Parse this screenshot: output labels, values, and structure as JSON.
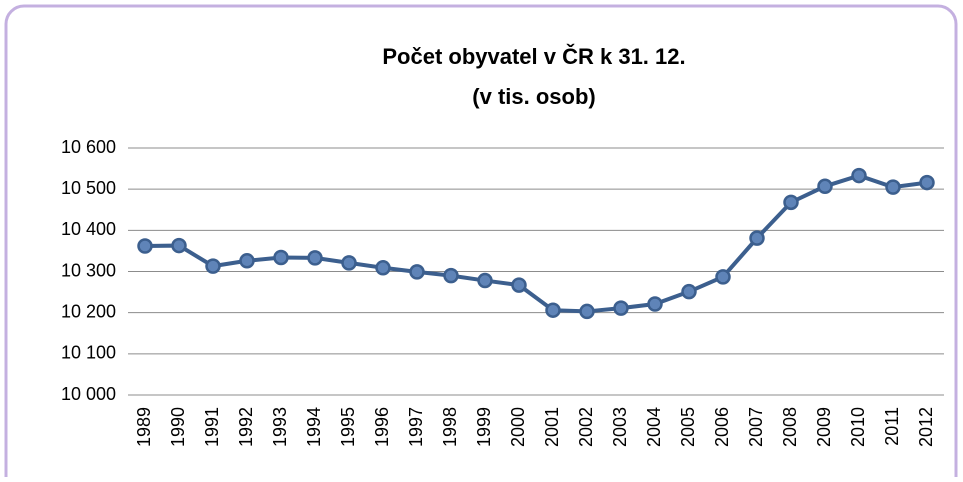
{
  "chart_data": {
    "type": "line",
    "title": "Počet obyvatel v ČR k 31. 12.",
    "subtitle": "(v tis. osob)",
    "categories": [
      "1989",
      "1990",
      "1991",
      "1992",
      "1993",
      "1994",
      "1995",
      "1996",
      "1997",
      "1998",
      "1999",
      "2000",
      "2001",
      "2002",
      "2003",
      "2004",
      "2005",
      "2006",
      "2007",
      "2008",
      "2009",
      "2010",
      "2011",
      "2012"
    ],
    "series": [
      {
        "color": "#3c5f8e",
        "values": [
          10362,
          10363,
          10313,
          10326,
          10334,
          10333,
          10321,
          10309,
          10299,
          10290,
          10278,
          10267,
          10206,
          10203,
          10211,
          10221,
          10251,
          10287,
          10381,
          10468,
          10507,
          10533,
          10505,
          10516
        ]
      }
    ],
    "ylim": [
      10000,
      10600
    ],
    "yticks": [
      {
        "value": 10000,
        "label": "10 000"
      },
      {
        "value": 10100,
        "label": "10 100"
      },
      {
        "value": 10200,
        "label": "10 200"
      },
      {
        "value": 10300,
        "label": "10 300"
      },
      {
        "value": 10400,
        "label": "10 400"
      },
      {
        "value": 10500,
        "label": "10 500"
      },
      {
        "value": 10600,
        "label": "10 600"
      }
    ],
    "grid": true
  }
}
